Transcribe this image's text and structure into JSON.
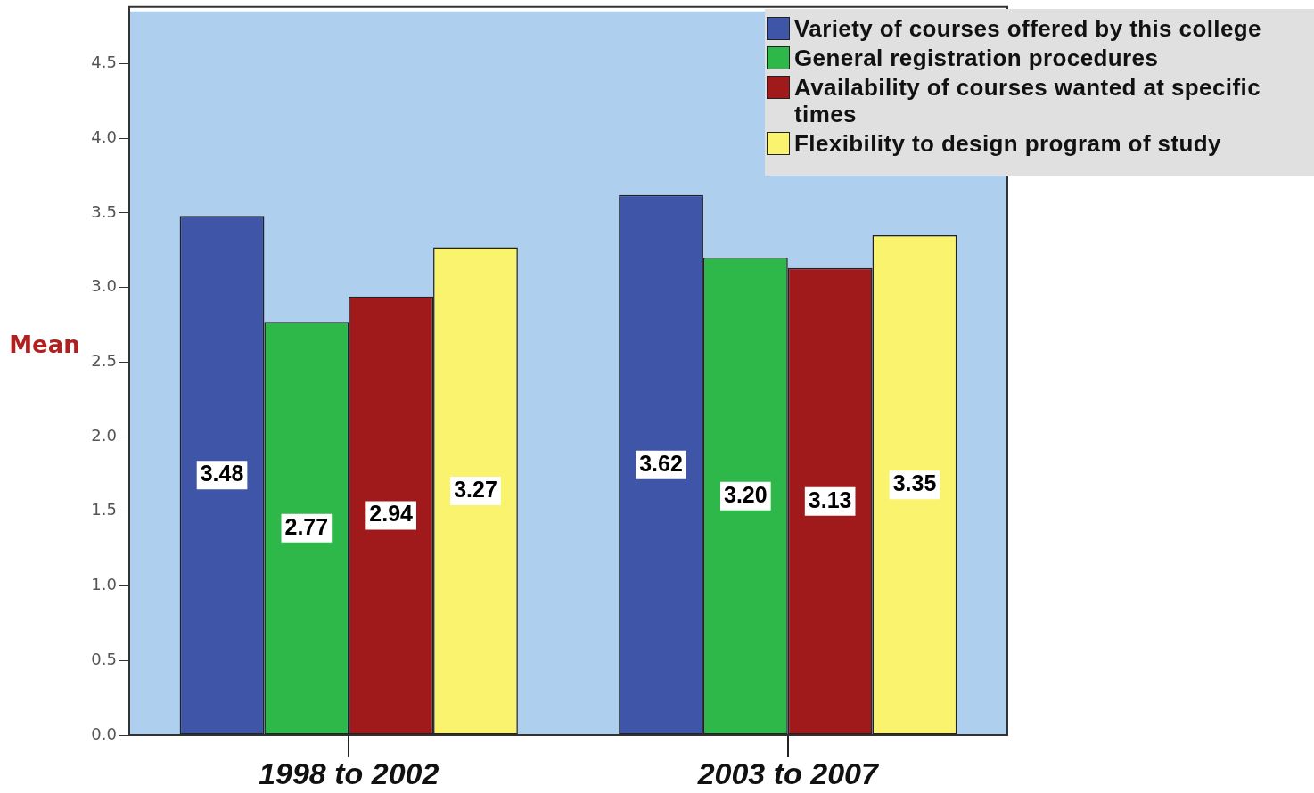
{
  "chart_data": {
    "type": "bar",
    "ylabel": "Mean",
    "categories": [
      "1998 to 2002",
      "2003 to 2007"
    ],
    "series": [
      {
        "name": "Variety of courses offered by this college",
        "color": "#3f55a8",
        "values": [
          3.48,
          3.62
        ],
        "value_labels": [
          "3.48",
          "3.62"
        ]
      },
      {
        "name": "General registration procedures",
        "color": "#2fb84a",
        "values": [
          2.77,
          3.2
        ],
        "value_labels": [
          "2.77",
          "3.20"
        ]
      },
      {
        "name": "Availability of courses wanted at specific times",
        "color": "#a01a1c",
        "values": [
          2.94,
          3.13
        ],
        "value_labels": [
          "2.94",
          "3.13"
        ]
      },
      {
        "name": "Flexibility to design program of study",
        "color": "#f9f36e",
        "values": [
          3.27,
          3.35
        ],
        "value_labels": [
          "3.27",
          "3.35"
        ]
      }
    ],
    "ylim": [
      0,
      4.85
    ],
    "yticks": [
      {
        "value": 0,
        "label": "0.0"
      },
      {
        "value": 0.5,
        "label": "0.5"
      },
      {
        "value": 1,
        "label": "1.0"
      },
      {
        "value": 1.5,
        "label": "1.5"
      },
      {
        "value": 2,
        "label": "2.0"
      },
      {
        "value": 2.5,
        "label": "2.5"
      },
      {
        "value": 3,
        "label": "3.0"
      },
      {
        "value": 3.5,
        "label": "3.5"
      },
      {
        "value": 4,
        "label": "4.0"
      },
      {
        "value": 4.5,
        "label": "4.5"
      }
    ],
    "grid": false,
    "legend": "top right"
  }
}
